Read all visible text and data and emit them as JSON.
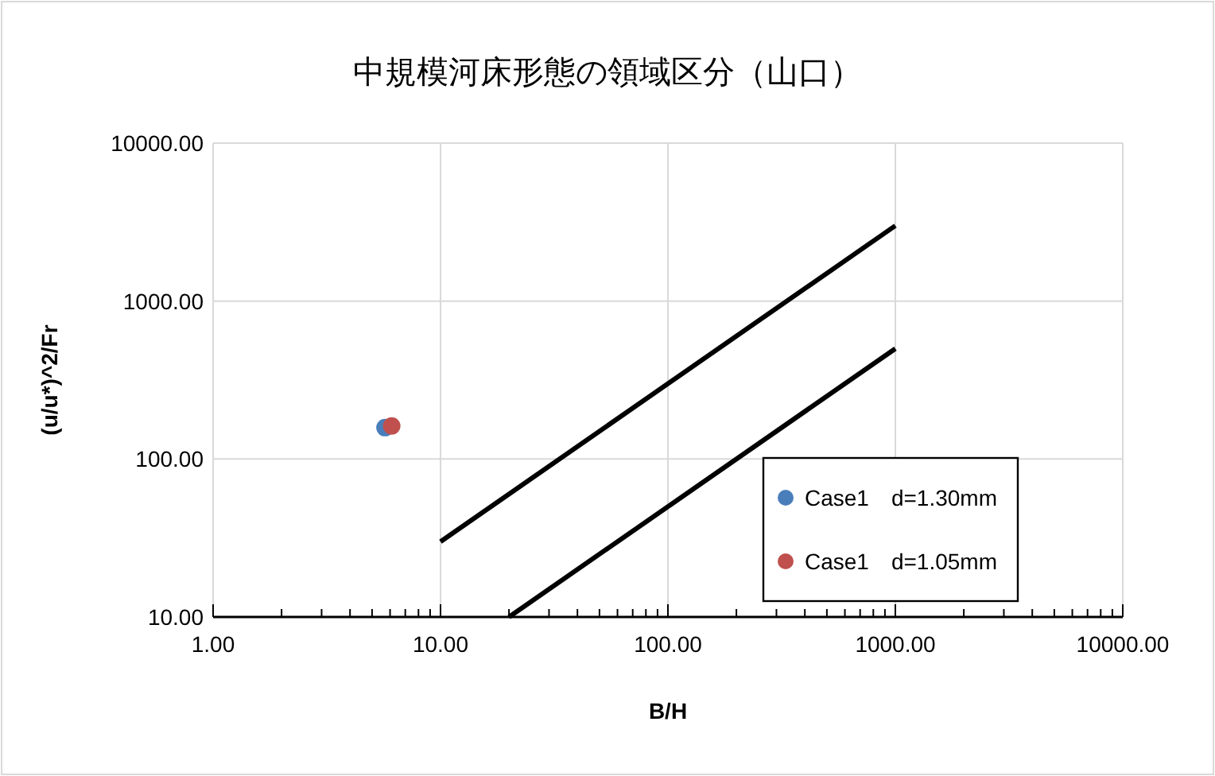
{
  "chart_data": {
    "type": "scatter",
    "title": "中規模河床形態の領域区分（山口）",
    "xlabel": "B/H",
    "ylabel": "(u/u*)^2/Fr",
    "log": "xy",
    "grid": true,
    "legend": "bottom right",
    "marker": "circle",
    "xlim": [
      1,
      10000
    ],
    "ylim": [
      10,
      10000
    ],
    "xticks": [
      {
        "value": 1,
        "label": "1.00"
      },
      {
        "value": 10,
        "label": "10.00"
      },
      {
        "value": 100,
        "label": "100.00"
      },
      {
        "value": 1000,
        "label": "1000.00"
      },
      {
        "value": 10000,
        "label": "10000.00"
      }
    ],
    "yticks": [
      {
        "value": 10,
        "label": "10.00"
      },
      {
        "value": 100,
        "label": "100.00"
      },
      {
        "value": 1000,
        "label": "1000.00"
      },
      {
        "value": 10000,
        "label": "10000.00"
      }
    ],
    "series": [
      {
        "type": "line",
        "marker": "none",
        "color": "#000000",
        "x": [
          10,
          1000
        ],
        "values": [
          30,
          3000
        ]
      },
      {
        "type": "line",
        "marker": "none",
        "color": "#000000",
        "x": [
          20,
          1000
        ],
        "values": [
          10,
          500
        ]
      },
      {
        "name": "Case1　d=1.30mm",
        "color": "#4a7ebb",
        "x": [
          5.7
        ],
        "values": [
          158
        ]
      },
      {
        "name": "Case1　d=1.05mm",
        "color": "#c0504d",
        "x": [
          6.1
        ],
        "values": [
          162
        ]
      }
    ]
  }
}
